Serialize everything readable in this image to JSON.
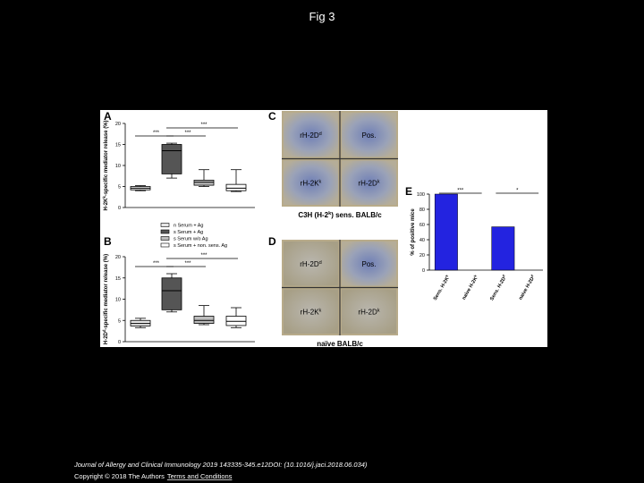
{
  "title": "Fig 3",
  "figure": {
    "legend": [
      {
        "label": "n Serum + Ag",
        "fill": "#e6e6e6"
      },
      {
        "label": "s Serum + Ag",
        "fill": "#555555"
      },
      {
        "label": "s Serum w/o Ag",
        "fill": "#bdbdbd"
      },
      {
        "label": "s Serum + non. sens. Ag",
        "fill": "#ffffff"
      }
    ],
    "A": {
      "label": "A",
      "y_label": {
        "base": "H-2K",
        "sup": "k",
        "rest": "-specific mediator release (%)"
      },
      "ylim": [
        0,
        20
      ],
      "yticks": [
        0,
        5,
        10,
        15,
        20
      ],
      "boxes": [
        {
          "whisker_low": 4,
          "q1": 4.2,
          "median": 4.6,
          "q3": 5,
          "whisker_high": 5.2
        },
        {
          "whisker_low": 7,
          "q1": 8,
          "median": 13.5,
          "q3": 15,
          "whisker_high": 15.3
        },
        {
          "whisker_low": 5,
          "q1": 5.3,
          "median": 6,
          "q3": 6.5,
          "whisker_high": 9
        },
        {
          "whisker_low": 3.8,
          "q1": 4,
          "median": 4.6,
          "q3": 5.5,
          "whisker_high": 9
        }
      ],
      "brackets": [
        "***",
        "***",
        "***"
      ]
    },
    "B": {
      "label": "B",
      "y_label": {
        "base": "H-2D",
        "sup": "d",
        "rest": "-specific mediator release (%)"
      },
      "ylim": [
        0,
        20
      ],
      "yticks": [
        0,
        5,
        10,
        15,
        20
      ],
      "boxes": [
        {
          "whisker_low": 3.3,
          "q1": 3.7,
          "median": 4.3,
          "q3": 5,
          "whisker_high": 5.5
        },
        {
          "whisker_low": 7,
          "q1": 7.5,
          "median": 12,
          "q3": 15,
          "whisker_high": 16
        },
        {
          "whisker_low": 4,
          "q1": 4.3,
          "median": 5,
          "q3": 6,
          "whisker_high": 8.5
        },
        {
          "whisker_low": 3.3,
          "q1": 3.8,
          "median": 4.8,
          "q3": 6,
          "whisker_high": 8
        }
      ],
      "brackets": [
        "***",
        "***",
        "***"
      ]
    },
    "C": {
      "label": "C",
      "wells": [
        {
          "base": "rH-2D",
          "sup": "d"
        },
        {
          "base": "Pos."
        },
        {
          "base": "rH-2K",
          "sup": "k"
        },
        {
          "base": "rH-2D",
          "sup": "k"
        }
      ],
      "caption": {
        "base": "C3H (H-2",
        "sup": "k",
        "rest": ") sens. BALB/c"
      }
    },
    "D": {
      "label": "D",
      "wells": [
        {
          "base": "rH-2D",
          "sup": "d"
        },
        {
          "base": "Pos."
        },
        {
          "base": "rH-2K",
          "sup": "k"
        },
        {
          "base": "rH-2D",
          "sup": "k"
        }
      ],
      "caption": {
        "base": "naïve BALB/c"
      }
    },
    "E": {
      "label": "E",
      "type": "bar",
      "y_label": "% of positive mice",
      "color": "#2323e0",
      "ylim": [
        0,
        100
      ],
      "yticks": [
        0,
        20,
        40,
        60,
        80,
        100
      ],
      "categories": [
        {
          "base": "Sens. H-2K",
          "sup": "k"
        },
        {
          "base": "naive H-2K",
          "sup": "k"
        },
        {
          "base": "Sens. H-2D",
          "sup": "d"
        },
        {
          "base": "naive H-2D",
          "sup": "d"
        }
      ],
      "values": [
        100,
        0,
        57,
        0
      ],
      "brackets": [
        "***",
        "*"
      ]
    }
  },
  "footer": {
    "citation": "Journal of Allergy and Clinical Immunology 2019 143335-345.e12DOI: (10.1016/j.jaci.2018.06.034)",
    "copyright": "Copyright © 2018 The Authors",
    "link": "Terms and Conditions"
  }
}
